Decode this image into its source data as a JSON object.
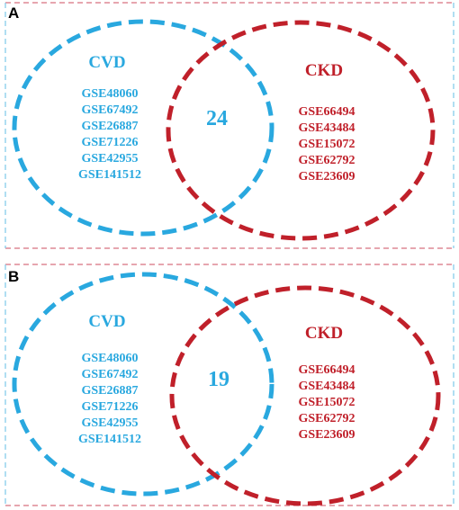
{
  "colors": {
    "cvd": "#29a8df",
    "ckd": "#c0202a",
    "frame": "#d8707f",
    "frame_side": "#7cc7ea"
  },
  "panels": [
    {
      "label": "A",
      "left_set": {
        "title": "CVD",
        "items": [
          "GSE48060",
          "GSE67492",
          "GSE26887",
          "GSE71226",
          "GSE42955",
          "GSE141512"
        ]
      },
      "right_set": {
        "title": "CKD",
        "items": [
          "GSE66494",
          "GSE43484",
          "GSE15072",
          "GSE62792",
          "GSE23609"
        ]
      },
      "overlap_count": "24"
    },
    {
      "label": "B",
      "left_set": {
        "title": "CVD",
        "items": [
          "GSE48060",
          "GSE67492",
          "GSE26887",
          "GSE71226",
          "GSE42955",
          "GSE141512"
        ]
      },
      "right_set": {
        "title": "CKD",
        "items": [
          "GSE66494",
          "GSE43484",
          "GSE15072",
          "GSE62792",
          "GSE23609"
        ]
      },
      "overlap_count": "19"
    }
  ]
}
